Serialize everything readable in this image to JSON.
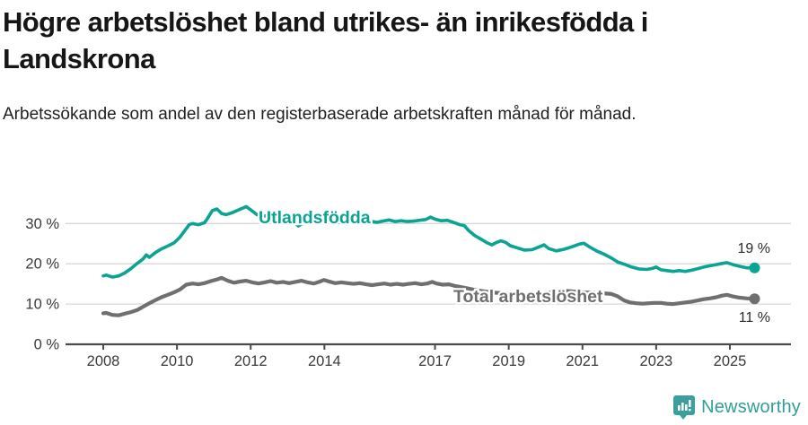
{
  "header": {
    "title": "Högre arbetslöshet bland utrikes- än inrikesfödda i Landskrona",
    "subtitle": "Arbetssökande som andel av den registerbaserade arbetskraften månad för månad."
  },
  "chart_data": {
    "type": "line",
    "unit": "%",
    "grid": "horizontal",
    "legend_position": "inline-labels",
    "x_ticks": [
      2008,
      2010,
      2012,
      2014,
      2017,
      2019,
      2021,
      2023,
      2025
    ],
    "y_ticks": [
      0,
      10,
      20,
      30
    ],
    "y_tick_suffix": " %",
    "ylim": [
      0,
      36
    ],
    "xlim": [
      2007.45,
      2026.2
    ],
    "colors": {
      "utlandsfodda": "#0ba394",
      "total": "#6f6f6f",
      "end_label": "#2b2b2b",
      "tick_text": "#3a3a3a",
      "axis": "#4a4a4a",
      "gridline": "#d8d8d8"
    },
    "series": [
      {
        "name": "Utlandsfödda",
        "color": "#0ba394",
        "end_label": "19 %",
        "points": [
          [
            2008.0,
            17.0
          ],
          [
            2008.08,
            17.2
          ],
          [
            2008.25,
            16.7
          ],
          [
            2008.42,
            17.0
          ],
          [
            2008.58,
            17.7
          ],
          [
            2008.75,
            18.8
          ],
          [
            2008.92,
            20.1
          ],
          [
            2009.08,
            21.2
          ],
          [
            2009.17,
            22.2
          ],
          [
            2009.25,
            21.6
          ],
          [
            2009.42,
            22.8
          ],
          [
            2009.58,
            23.7
          ],
          [
            2009.75,
            24.4
          ],
          [
            2009.92,
            25.2
          ],
          [
            2010.08,
            26.6
          ],
          [
            2010.25,
            28.7
          ],
          [
            2010.33,
            29.7
          ],
          [
            2010.42,
            30.0
          ],
          [
            2010.58,
            29.7
          ],
          [
            2010.75,
            30.2
          ],
          [
            2010.83,
            31.3
          ],
          [
            2010.96,
            33.2
          ],
          [
            2011.08,
            33.6
          ],
          [
            2011.21,
            32.5
          ],
          [
            2011.33,
            32.2
          ],
          [
            2011.5,
            32.7
          ],
          [
            2011.63,
            33.2
          ],
          [
            2011.75,
            33.7
          ],
          [
            2011.88,
            34.2
          ],
          [
            2012.0,
            33.4
          ],
          [
            2012.17,
            32.2
          ],
          [
            2012.33,
            31.8
          ],
          [
            2012.5,
            32.0
          ],
          [
            2012.67,
            31.6
          ],
          [
            2012.83,
            31.3
          ],
          [
            2013.0,
            31.5
          ],
          [
            2013.17,
            30.5
          ],
          [
            2013.29,
            29.4
          ],
          [
            2013.46,
            30.3
          ],
          [
            2013.63,
            30.9
          ],
          [
            2013.79,
            31.0
          ],
          [
            2013.92,
            30.7
          ],
          [
            2014.08,
            30.9
          ],
          [
            2014.25,
            30.6
          ],
          [
            2014.42,
            30.3
          ],
          [
            2014.58,
            30.5
          ],
          [
            2014.75,
            30.8
          ],
          [
            2014.92,
            30.6
          ],
          [
            2015.08,
            30.4
          ],
          [
            2015.25,
            30.6
          ],
          [
            2015.42,
            30.3
          ],
          [
            2015.58,
            30.6
          ],
          [
            2015.75,
            30.9
          ],
          [
            2015.92,
            30.5
          ],
          [
            2016.08,
            30.7
          ],
          [
            2016.25,
            30.5
          ],
          [
            2016.42,
            30.6
          ],
          [
            2016.58,
            30.8
          ],
          [
            2016.75,
            31.0
          ],
          [
            2016.88,
            31.6
          ],
          [
            2017.0,
            31.1
          ],
          [
            2017.17,
            30.7
          ],
          [
            2017.33,
            30.8
          ],
          [
            2017.5,
            30.3
          ],
          [
            2017.67,
            29.7
          ],
          [
            2017.79,
            29.5
          ],
          [
            2017.92,
            28.2
          ],
          [
            2018.08,
            27.0
          ],
          [
            2018.25,
            26.1
          ],
          [
            2018.42,
            25.2
          ],
          [
            2018.54,
            24.7
          ],
          [
            2018.67,
            25.3
          ],
          [
            2018.79,
            25.7
          ],
          [
            2018.92,
            25.3
          ],
          [
            2019.04,
            24.5
          ],
          [
            2019.21,
            24.0
          ],
          [
            2019.42,
            23.4
          ],
          [
            2019.63,
            23.5
          ],
          [
            2019.83,
            24.2
          ],
          [
            2019.96,
            24.7
          ],
          [
            2020.08,
            23.8
          ],
          [
            2020.29,
            23.2
          ],
          [
            2020.5,
            23.6
          ],
          [
            2020.71,
            24.2
          ],
          [
            2020.92,
            24.9
          ],
          [
            2021.04,
            25.1
          ],
          [
            2021.17,
            24.3
          ],
          [
            2021.38,
            23.2
          ],
          [
            2021.58,
            22.4
          ],
          [
            2021.79,
            21.4
          ],
          [
            2021.96,
            20.4
          ],
          [
            2022.13,
            19.9
          ],
          [
            2022.33,
            19.2
          ],
          [
            2022.54,
            18.7
          ],
          [
            2022.75,
            18.6
          ],
          [
            2022.92,
            18.9
          ],
          [
            2023.0,
            19.2
          ],
          [
            2023.13,
            18.5
          ],
          [
            2023.29,
            18.3
          ],
          [
            2023.46,
            18.1
          ],
          [
            2023.63,
            18.3
          ],
          [
            2023.79,
            18.1
          ],
          [
            2023.96,
            18.4
          ],
          [
            2024.13,
            18.8
          ],
          [
            2024.29,
            19.2
          ],
          [
            2024.46,
            19.5
          ],
          [
            2024.63,
            19.8
          ],
          [
            2024.79,
            20.1
          ],
          [
            2024.92,
            20.3
          ],
          [
            2025.08,
            19.8
          ],
          [
            2025.25,
            19.4
          ],
          [
            2025.46,
            19.0
          ],
          [
            2025.67,
            19.0
          ]
        ]
      },
      {
        "name": "Total arbetslöshet",
        "color": "#6f6f6f",
        "end_label": "11 %",
        "points": [
          [
            2008.0,
            7.7
          ],
          [
            2008.08,
            7.8
          ],
          [
            2008.25,
            7.3
          ],
          [
            2008.42,
            7.2
          ],
          [
            2008.58,
            7.6
          ],
          [
            2008.75,
            8.0
          ],
          [
            2008.92,
            8.5
          ],
          [
            2009.08,
            9.3
          ],
          [
            2009.25,
            10.2
          ],
          [
            2009.42,
            11.0
          ],
          [
            2009.58,
            11.7
          ],
          [
            2009.75,
            12.3
          ],
          [
            2009.92,
            12.9
          ],
          [
            2010.08,
            13.6
          ],
          [
            2010.25,
            14.8
          ],
          [
            2010.42,
            15.1
          ],
          [
            2010.58,
            14.9
          ],
          [
            2010.75,
            15.2
          ],
          [
            2010.92,
            15.7
          ],
          [
            2011.08,
            16.1
          ],
          [
            2011.21,
            16.5
          ],
          [
            2011.38,
            15.8
          ],
          [
            2011.54,
            15.3
          ],
          [
            2011.71,
            15.6
          ],
          [
            2011.88,
            15.8
          ],
          [
            2012.04,
            15.4
          ],
          [
            2012.21,
            15.1
          ],
          [
            2012.38,
            15.4
          ],
          [
            2012.54,
            15.7
          ],
          [
            2012.71,
            15.3
          ],
          [
            2012.88,
            15.5
          ],
          [
            2013.04,
            15.2
          ],
          [
            2013.21,
            15.5
          ],
          [
            2013.38,
            15.8
          ],
          [
            2013.54,
            15.4
          ],
          [
            2013.71,
            15.1
          ],
          [
            2013.88,
            15.6
          ],
          [
            2013.99,
            16.0
          ],
          [
            2014.13,
            15.6
          ],
          [
            2014.29,
            15.2
          ],
          [
            2014.46,
            15.4
          ],
          [
            2014.63,
            15.2
          ],
          [
            2014.79,
            15.0
          ],
          [
            2014.96,
            15.2
          ],
          [
            2015.13,
            14.9
          ],
          [
            2015.29,
            14.7
          ],
          [
            2015.46,
            14.9
          ],
          [
            2015.63,
            15.1
          ],
          [
            2015.79,
            14.8
          ],
          [
            2015.96,
            15.0
          ],
          [
            2016.13,
            14.8
          ],
          [
            2016.29,
            15.0
          ],
          [
            2016.46,
            15.2
          ],
          [
            2016.63,
            14.9
          ],
          [
            2016.79,
            15.1
          ],
          [
            2016.92,
            15.5
          ],
          [
            2017.04,
            15.1
          ],
          [
            2017.21,
            14.8
          ],
          [
            2017.38,
            14.9
          ],
          [
            2017.54,
            14.5
          ],
          [
            2017.71,
            14.2
          ],
          [
            2017.88,
            13.9
          ],
          [
            2018.04,
            13.6
          ],
          [
            2018.29,
            13.2
          ],
          [
            2018.54,
            12.9
          ],
          [
            2018.79,
            12.7
          ],
          [
            2019.04,
            12.6
          ],
          [
            2019.29,
            12.4
          ],
          [
            2019.54,
            12.3
          ],
          [
            2019.79,
            12.4
          ],
          [
            2020.04,
            12.7
          ],
          [
            2020.29,
            13.1
          ],
          [
            2020.54,
            13.3
          ],
          [
            2020.79,
            13.1
          ],
          [
            2021.04,
            12.9
          ],
          [
            2021.29,
            12.8
          ],
          [
            2021.54,
            12.7
          ],
          [
            2021.79,
            12.5
          ],
          [
            2021.96,
            11.9
          ],
          [
            2022.13,
            10.9
          ],
          [
            2022.29,
            10.4
          ],
          [
            2022.46,
            10.2
          ],
          [
            2022.63,
            10.1
          ],
          [
            2022.79,
            10.2
          ],
          [
            2022.96,
            10.3
          ],
          [
            2023.13,
            10.3
          ],
          [
            2023.29,
            10.1
          ],
          [
            2023.46,
            10.0
          ],
          [
            2023.63,
            10.2
          ],
          [
            2023.79,
            10.4
          ],
          [
            2023.96,
            10.6
          ],
          [
            2024.13,
            10.9
          ],
          [
            2024.29,
            11.2
          ],
          [
            2024.46,
            11.4
          ],
          [
            2024.63,
            11.7
          ],
          [
            2024.79,
            12.1
          ],
          [
            2024.92,
            12.3
          ],
          [
            2025.08,
            11.9
          ],
          [
            2025.25,
            11.6
          ],
          [
            2025.46,
            11.4
          ],
          [
            2025.67,
            11.3
          ]
        ]
      }
    ]
  },
  "footer": {
    "brand": "Newsworthy"
  }
}
